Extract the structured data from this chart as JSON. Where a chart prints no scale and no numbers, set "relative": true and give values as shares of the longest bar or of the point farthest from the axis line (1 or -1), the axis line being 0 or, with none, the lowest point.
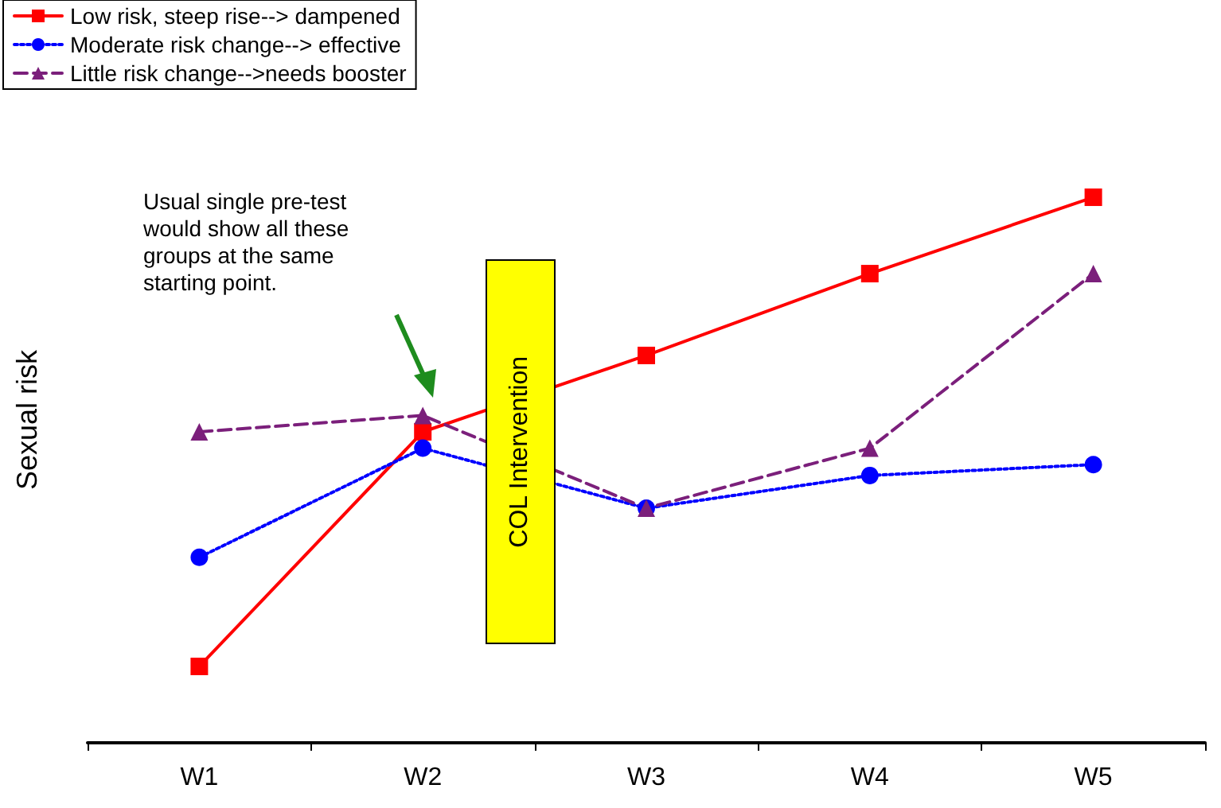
{
  "chart_data": {
    "type": "line",
    "ylabel": "Sexual risk",
    "relative": true,
    "grid": false,
    "legend": "top left",
    "categories": [
      "W1",
      "W2",
      "W3",
      "W4",
      "W5"
    ],
    "series": [
      {
        "name": "Low risk, steep rise--> dampened",
        "color": "#ff0000",
        "marker": "square",
        "line_style": "solid",
        "values": [
          0.14,
          0.57,
          0.71,
          0.86,
          1.0
        ]
      },
      {
        "name": "Moderate risk change--> effective",
        "color": "#0000ff",
        "marker": "circle",
        "line_style": "dotted",
        "values": [
          0.34,
          0.54,
          0.43,
          0.49,
          0.51
        ]
      },
      {
        "name": "Little risk change-->needs booster",
        "color": "#7b1f7b",
        "marker": "triangle",
        "line_style": "dashed",
        "values": [
          0.57,
          0.6,
          0.43,
          0.54,
          0.86
        ]
      }
    ],
    "annotations": [
      "Usual single pre-test would show all these groups at the same starting point.",
      "COL Intervention"
    ]
  }
}
